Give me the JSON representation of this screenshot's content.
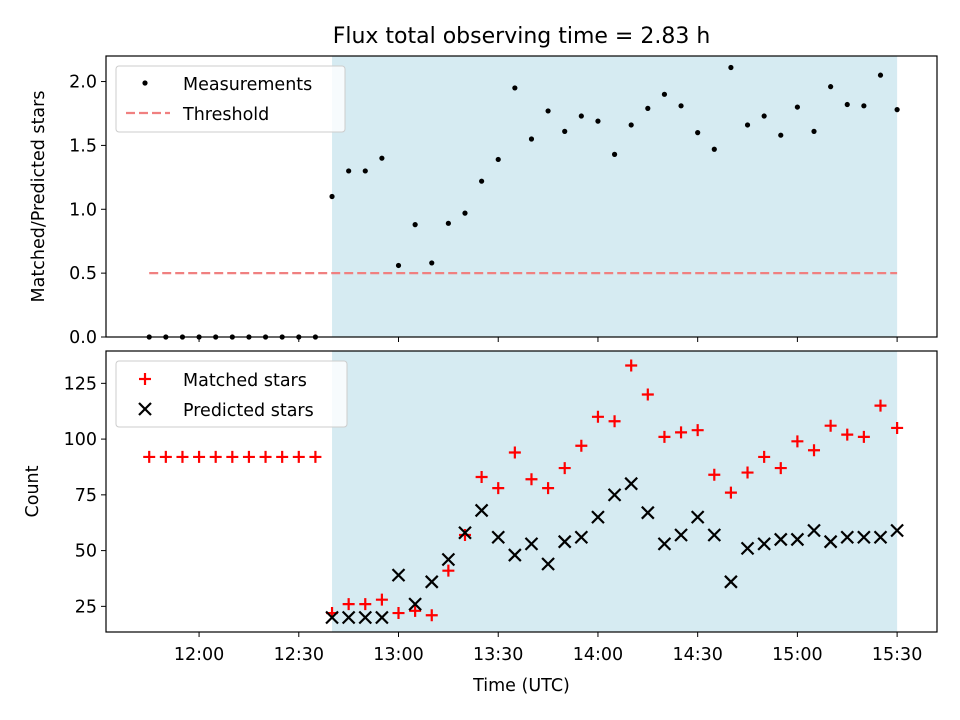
{
  "title": "Flux total observing time = 2.83 h",
  "colors": {
    "shade": "#add8e6",
    "threshold": "#f08080",
    "matched": "#ff0000",
    "predicted": "#000000",
    "measurement": "#000000"
  },
  "chart_data": [
    {
      "type": "scatter",
      "ylabel": "Matched/Predicted stars",
      "ylim": [
        0,
        2.2
      ],
      "yticks": [
        "0.0",
        "0.5",
        "1.0",
        "1.5",
        "2.0"
      ],
      "shaded_span": [
        "12:40",
        "15:30"
      ],
      "legend": {
        "placement": "top-left",
        "entries": [
          "Measurements",
          "Threshold"
        ]
      },
      "threshold": {
        "name": "Threshold",
        "y": 0.5,
        "x_range": [
          "11:45",
          "15:30"
        ]
      },
      "series": [
        {
          "name": "Measurements",
          "x": [
            "11:45",
            "11:50",
            "11:55",
            "12:00",
            "12:05",
            "12:10",
            "12:15",
            "12:20",
            "12:25",
            "12:30",
            "12:35",
            "12:40",
            "12:45",
            "12:50",
            "12:55",
            "13:00",
            "13:05",
            "13:10",
            "13:15",
            "13:20",
            "13:25",
            "13:30",
            "13:35",
            "13:40",
            "13:45",
            "13:50",
            "13:55",
            "14:00",
            "14:05",
            "14:10",
            "14:15",
            "14:20",
            "14:25",
            "14:30",
            "14:35",
            "14:40",
            "14:45",
            "14:50",
            "14:55",
            "15:00",
            "15:05",
            "15:10",
            "15:15",
            "15:20",
            "15:25",
            "15:30"
          ],
          "y": [
            0,
            0,
            0,
            0,
            0,
            0,
            0,
            0,
            0,
            0,
            0,
            1.1,
            1.3,
            1.3,
            1.4,
            0.56,
            0.88,
            0.58,
            0.89,
            0.97,
            1.22,
            1.39,
            1.95,
            1.55,
            1.77,
            1.61,
            1.73,
            1.69,
            1.43,
            1.66,
            1.79,
            1.9,
            1.81,
            1.6,
            1.47,
            2.11,
            1.66,
            1.73,
            1.58,
            1.8,
            1.61,
            1.96,
            1.82,
            1.81,
            2.05,
            1.78
          ]
        }
      ]
    },
    {
      "type": "scatter",
      "ylabel": "Count",
      "xlabel": "Time (UTC)",
      "ylim": [
        13.5,
        139.5
      ],
      "yticks": [
        "25",
        "50",
        "75",
        "100",
        "125"
      ],
      "xticks": [
        "12:00",
        "12:30",
        "13:00",
        "13:30",
        "14:00",
        "14:30",
        "15:00",
        "15:30"
      ],
      "shaded_span": [
        "12:40",
        "15:30"
      ],
      "legend": {
        "placement": "top-left",
        "entries": [
          "Matched stars",
          "Predicted stars"
        ]
      },
      "series": [
        {
          "name": "Matched stars",
          "marker": "+",
          "x": [
            "11:45",
            "11:50",
            "11:55",
            "12:00",
            "12:05",
            "12:10",
            "12:15",
            "12:20",
            "12:25",
            "12:30",
            "12:35",
            "12:40",
            "12:45",
            "12:50",
            "12:55",
            "13:00",
            "13:05",
            "13:10",
            "13:15",
            "13:20",
            "13:25",
            "13:30",
            "13:35",
            "13:40",
            "13:45",
            "13:50",
            "13:55",
            "14:00",
            "14:05",
            "14:10",
            "14:15",
            "14:20",
            "14:25",
            "14:30",
            "14:35",
            "14:40",
            "14:45",
            "14:50",
            "14:55",
            "15:00",
            "15:05",
            "15:10",
            "15:15",
            "15:20",
            "15:25",
            "15:30"
          ],
          "y": [
            92,
            92,
            92,
            92,
            92,
            92,
            92,
            92,
            92,
            92,
            92,
            22,
            26,
            26,
            28,
            22,
            23,
            21,
            41,
            57,
            83,
            78,
            94,
            82,
            78,
            87,
            97,
            110,
            108,
            133,
            120,
            101,
            103,
            104,
            84,
            76,
            85,
            92,
            87,
            99,
            95,
            106,
            102,
            101,
            115,
            105
          ]
        },
        {
          "name": "Predicted stars",
          "marker": "x",
          "x": [
            "12:40",
            "12:45",
            "12:50",
            "12:55",
            "13:00",
            "13:05",
            "13:10",
            "13:15",
            "13:20",
            "13:25",
            "13:30",
            "13:35",
            "13:40",
            "13:45",
            "13:50",
            "13:55",
            "14:00",
            "14:05",
            "14:10",
            "14:15",
            "14:20",
            "14:25",
            "14:30",
            "14:35",
            "14:40",
            "14:45",
            "14:50",
            "14:55",
            "15:00",
            "15:05",
            "15:10",
            "15:15",
            "15:20",
            "15:25",
            "15:30"
          ],
          "y": [
            20,
            20,
            20,
            20,
            39,
            26,
            36,
            46,
            58,
            68,
            56,
            48,
            53,
            44,
            54,
            56,
            65,
            75,
            80,
            67,
            53,
            57,
            65,
            57,
            36,
            51,
            53,
            55,
            55,
            59,
            54,
            56,
            56,
            56,
            59
          ]
        }
      ]
    }
  ]
}
